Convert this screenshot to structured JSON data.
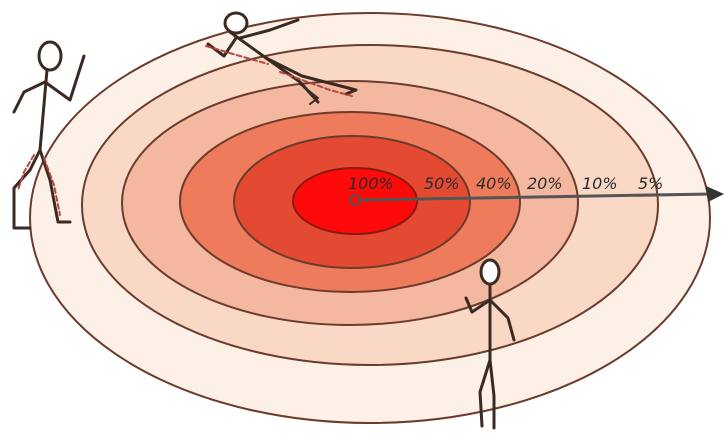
{
  "diagram": {
    "labels": [
      "100%",
      "50%",
      "40%",
      "20%",
      "10%",
      "5%"
    ],
    "colors": {
      "ring_fill": [
        "#fdf0e6",
        "#f9d8c6",
        "#f4b79f",
        "#ee7b5c",
        "#e44a32",
        "#ff0a0a"
      ],
      "ring_stroke": "#6b3b2c",
      "arrow": "#555555",
      "figure_stroke": "#3a2a22",
      "figure_accent": "#b34a3f"
    },
    "figures": [
      "stick-figure-left",
      "stick-figure-top",
      "stick-figure-bottom"
    ]
  }
}
